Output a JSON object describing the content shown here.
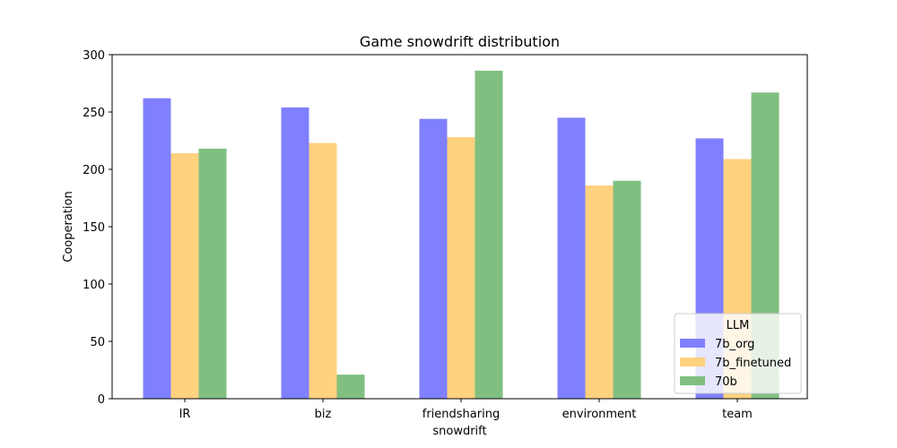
{
  "chart_data": {
    "type": "bar",
    "title": "Game snowdrift distribution",
    "xlabel": "snowdrift",
    "ylabel": "Cooperation",
    "categories": [
      "IR",
      "biz",
      "friendsharing",
      "environment",
      "team"
    ],
    "series": [
      {
        "name": "7b_org",
        "color": "#8080ff",
        "values": [
          262,
          254,
          244,
          245,
          227
        ]
      },
      {
        "name": "7b_finetuned",
        "color": "#ffd280",
        "values": [
          214,
          223,
          228,
          186,
          209
        ]
      },
      {
        "name": "70b",
        "color": "#80bf80",
        "values": [
          218,
          21,
          286,
          190,
          267
        ]
      }
    ],
    "ylim": [
      0,
      300
    ],
    "yticks": [
      0,
      50,
      100,
      150,
      200,
      250,
      300
    ],
    "grid": false,
    "legend": {
      "title": "LLM",
      "placement": "lower-right"
    }
  }
}
